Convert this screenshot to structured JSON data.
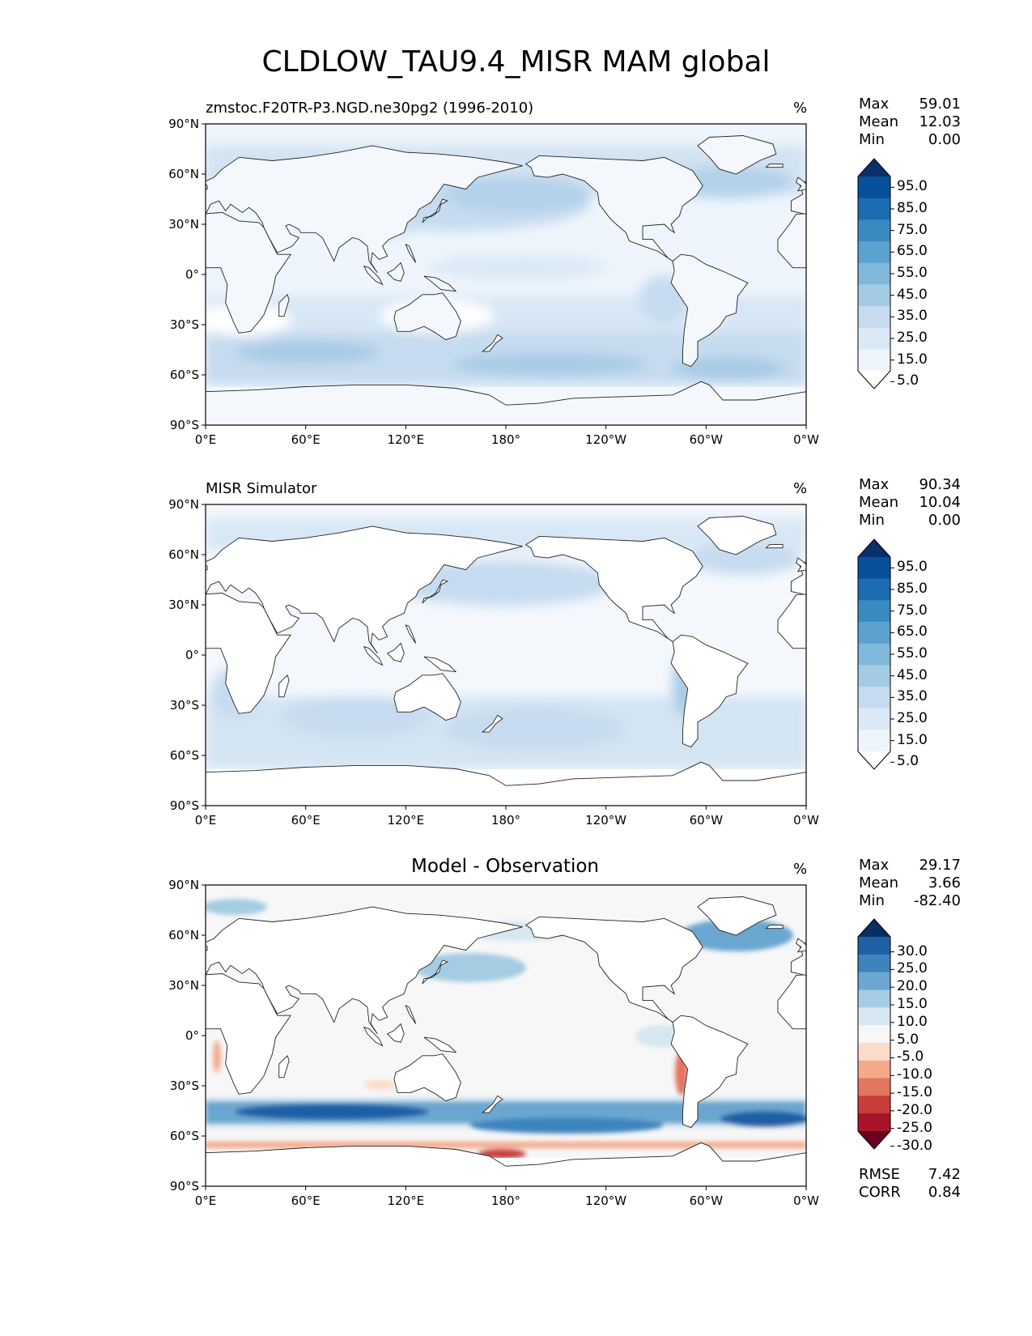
{
  "figure": {
    "title": "CLDLOW_TAU9.4_MISR MAM global"
  },
  "axes": {
    "lat_ticks": [
      "90°N",
      "60°N",
      "30°N",
      "0°",
      "30°S",
      "60°S",
      "90°S"
    ],
    "lon_ticks": [
      "0°E",
      "60°E",
      "120°E",
      "180°",
      "120°W",
      "60°W",
      "0°W"
    ]
  },
  "panels": [
    {
      "id": "model",
      "title": "zmstoc.F20TR-P3.NGD.ne30pg2 (1996-2010)",
      "title_align": "left",
      "units": "%",
      "stats": [
        {
          "label": "Max",
          "value": "59.01"
        },
        {
          "label": "Mean",
          "value": "12.03"
        },
        {
          "label": "Min",
          "value": "0.00"
        }
      ],
      "colorbar": {
        "labels": [
          "95.0",
          "85.0",
          "75.0",
          "65.0",
          "55.0",
          "45.0",
          "35.0",
          "25.0",
          "15.0",
          "5.0"
        ],
        "colors": [
          "#08306b",
          "#08509b",
          "#1c6cb1",
          "#3a8ac2",
          "#5aa1cf",
          "#7fb8da",
          "#a3cce3",
          "#c6dbef",
          "#dbe9f6",
          "#eef5fc",
          "#ffffff"
        ]
      }
    },
    {
      "id": "obs",
      "title": "MISR Simulator",
      "title_align": "left",
      "units": "%",
      "stats": [
        {
          "label": "Max",
          "value": "90.34"
        },
        {
          "label": "Mean",
          "value": "10.04"
        },
        {
          "label": "Min",
          "value": "0.00"
        }
      ],
      "colorbar": {
        "labels": [
          "95.0",
          "85.0",
          "75.0",
          "65.0",
          "55.0",
          "45.0",
          "35.0",
          "25.0",
          "15.0",
          "5.0"
        ],
        "colors": [
          "#08306b",
          "#08509b",
          "#1c6cb1",
          "#3a8ac2",
          "#5aa1cf",
          "#7fb8da",
          "#a3cce3",
          "#c6dbef",
          "#dbe9f6",
          "#eef5fc",
          "#ffffff"
        ]
      }
    },
    {
      "id": "diff",
      "title": "Model - Observation",
      "title_align": "center",
      "units": "%",
      "stats": [
        {
          "label": "Max",
          "value": "29.17"
        },
        {
          "label": "Mean",
          "value": "3.66"
        },
        {
          "label": "Min",
          "value": "-82.40"
        }
      ],
      "extra_stats": [
        {
          "label": "RMSE",
          "value": "7.42"
        },
        {
          "label": "CORR",
          "value": "0.84"
        }
      ],
      "colorbar": {
        "labels": [
          "30.0",
          "25.0",
          "20.0",
          "15.0",
          "10.0",
          "5.0",
          "-5.0",
          "-10.0",
          "-15.0",
          "-20.0",
          "-25.0",
          "-30.0"
        ],
        "colors": [
          "#053061",
          "#1f5fa6",
          "#3d84bd",
          "#6ba7d0",
          "#a5cce3",
          "#d6e7f1",
          "#f7f7f7",
          "#fbdcc9",
          "#f5a98a",
          "#e2765f",
          "#c83c3a",
          "#a81429",
          "#67001f"
        ]
      }
    }
  ]
}
